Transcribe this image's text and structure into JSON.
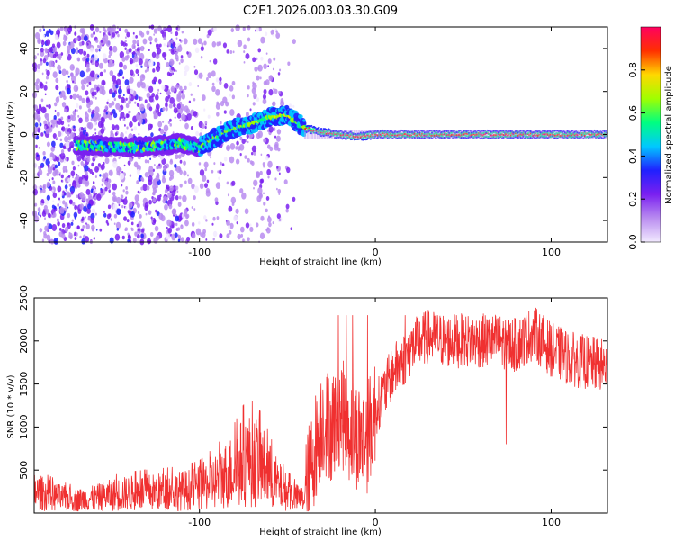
{
  "title": "C2E1.2026.003.03.30.G09",
  "chart_data": [
    {
      "type": "heatmap",
      "title": "C2E1.2026.003.03.30.G09",
      "xlabel": "Height of straight line (km)",
      "ylabel": "Frequency (Hz)",
      "xlim": [
        -194,
        132
      ],
      "ylim": [
        -50,
        50
      ],
      "xticks": [
        -100,
        0,
        100
      ],
      "yticks": [
        -40,
        -20,
        0,
        20,
        40
      ],
      "colorbar": {
        "label": "Normalized spectral amplitude",
        "range": [
          0.0,
          1.0
        ],
        "ticks": [
          "0.0",
          "0.2",
          "0.4",
          "0.6",
          "0.8"
        ],
        "colors": [
          "#f2eaff",
          "#b98cf0",
          "#7a20f0",
          "#2020ff",
          "#00c8ff",
          "#00ff80",
          "#a0ff00",
          "#ffd800",
          "#ff3000",
          "#ff0060"
        ]
      },
      "ridge": {
        "x": [
          -160,
          -140,
          -120,
          -110,
          -100,
          -90,
          -80,
          -70,
          -60,
          -50,
          -45,
          -40,
          -30,
          -20,
          -10,
          0,
          20,
          40,
          60,
          80,
          100,
          132
        ],
        "freq": [
          -5,
          -6,
          -5,
          -4,
          -6,
          -1,
          3,
          5,
          8,
          9,
          6,
          3,
          1,
          0,
          -1,
          0,
          0,
          0,
          0,
          0,
          0,
          0
        ]
      }
    },
    {
      "type": "line",
      "xlabel": "Height of straight line (km)",
      "ylabel": "SNR (10 * v/v)",
      "xlim": [
        -194,
        132
      ],
      "ylim": [
        0,
        2500
      ],
      "xticks": [
        -100,
        0,
        100
      ],
      "yticks": [
        500,
        1000,
        1500,
        2000,
        2500
      ],
      "series": [
        {
          "name": "SNR",
          "color": "#f03030",
          "x": [
            -194,
            -180,
            -170,
            -160,
            -150,
            -140,
            -130,
            -120,
            -110,
            -100,
            -90,
            -80,
            -75,
            -70,
            -65,
            -60,
            -55,
            -50,
            -45,
            -40,
            -35,
            -30,
            -25,
            -20,
            -15,
            -10,
            -5,
            0,
            5,
            10,
            15,
            20,
            25,
            30,
            40,
            50,
            60,
            70,
            80,
            90,
            100,
            110,
            120,
            132
          ],
          "y": [
            250,
            180,
            150,
            170,
            210,
            230,
            240,
            250,
            260,
            290,
            380,
            500,
            600,
            620,
            560,
            430,
            320,
            230,
            180,
            160,
            700,
            1100,
            1000,
            1200,
            1000,
            900,
            850,
            1200,
            1400,
            1650,
            1750,
            1900,
            2000,
            2050,
            2000,
            2000,
            2000,
            2000,
            1950,
            2100,
            1900,
            1800,
            1750,
            1700
          ]
        }
      ]
    }
  ]
}
